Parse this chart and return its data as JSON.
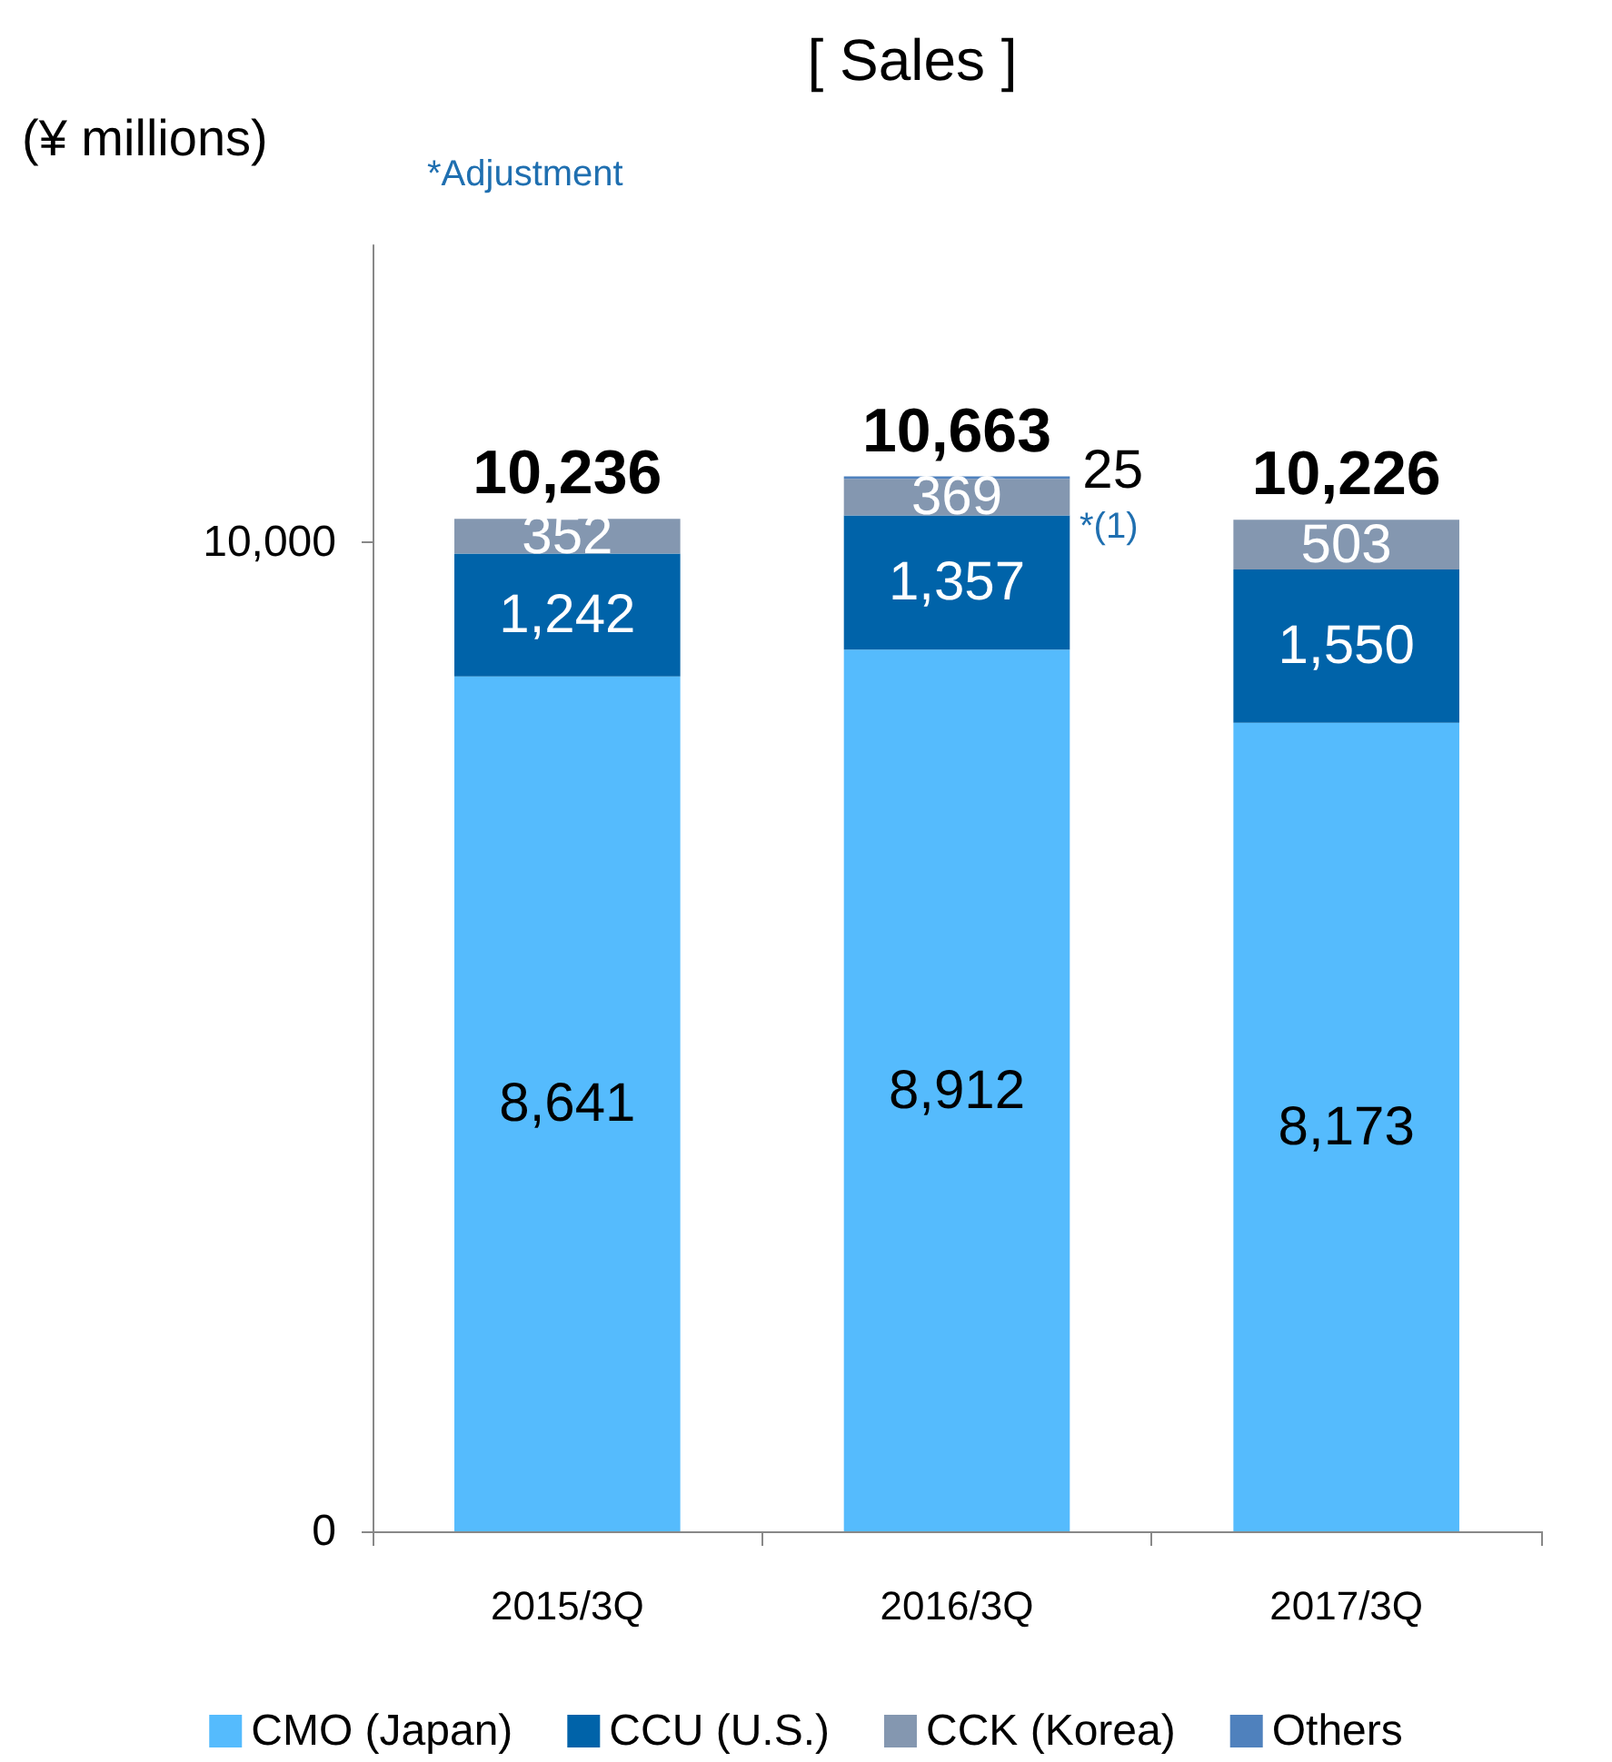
{
  "chart_data": {
    "type": "bar",
    "title": "[ Sales ]",
    "ylabel": "(¥ millions)",
    "stacked": true,
    "categories": [
      "2015/3Q",
      "2016/3Q",
      "2017/3Q"
    ],
    "series": [
      {
        "name": "CMO (Japan)",
        "color": "#55bbfd",
        "values": [
          8641,
          8912,
          8173
        ],
        "value_labels": [
          "8,641",
          "8,912",
          "8,173"
        ]
      },
      {
        "name": "CCU (U.S.)",
        "color": "#0063a9",
        "values": [
          1242,
          1357,
          1550
        ],
        "value_labels": [
          "1,242",
          "1,357",
          "1,550"
        ]
      },
      {
        "name": "CCK (Korea)",
        "color": "#8497b0",
        "values": [
          352,
          369,
          503
        ],
        "value_labels": [
          "352",
          "369",
          "503"
        ]
      },
      {
        "name": "Others",
        "color": "#4f81bd",
        "values": [
          null,
          25,
          null
        ],
        "value_labels": [
          null,
          "25",
          null
        ]
      }
    ],
    "totals": [
      "10,236",
      "10,663",
      "10,226"
    ],
    "ylim": [
      0,
      13000
    ],
    "yticks": [
      0,
      {
        "value": 10000,
        "label": "10,000"
      }
    ],
    "annotations": [
      "*Adjustment",
      "*(1)"
    ],
    "grid": false,
    "legend": "bottom"
  }
}
